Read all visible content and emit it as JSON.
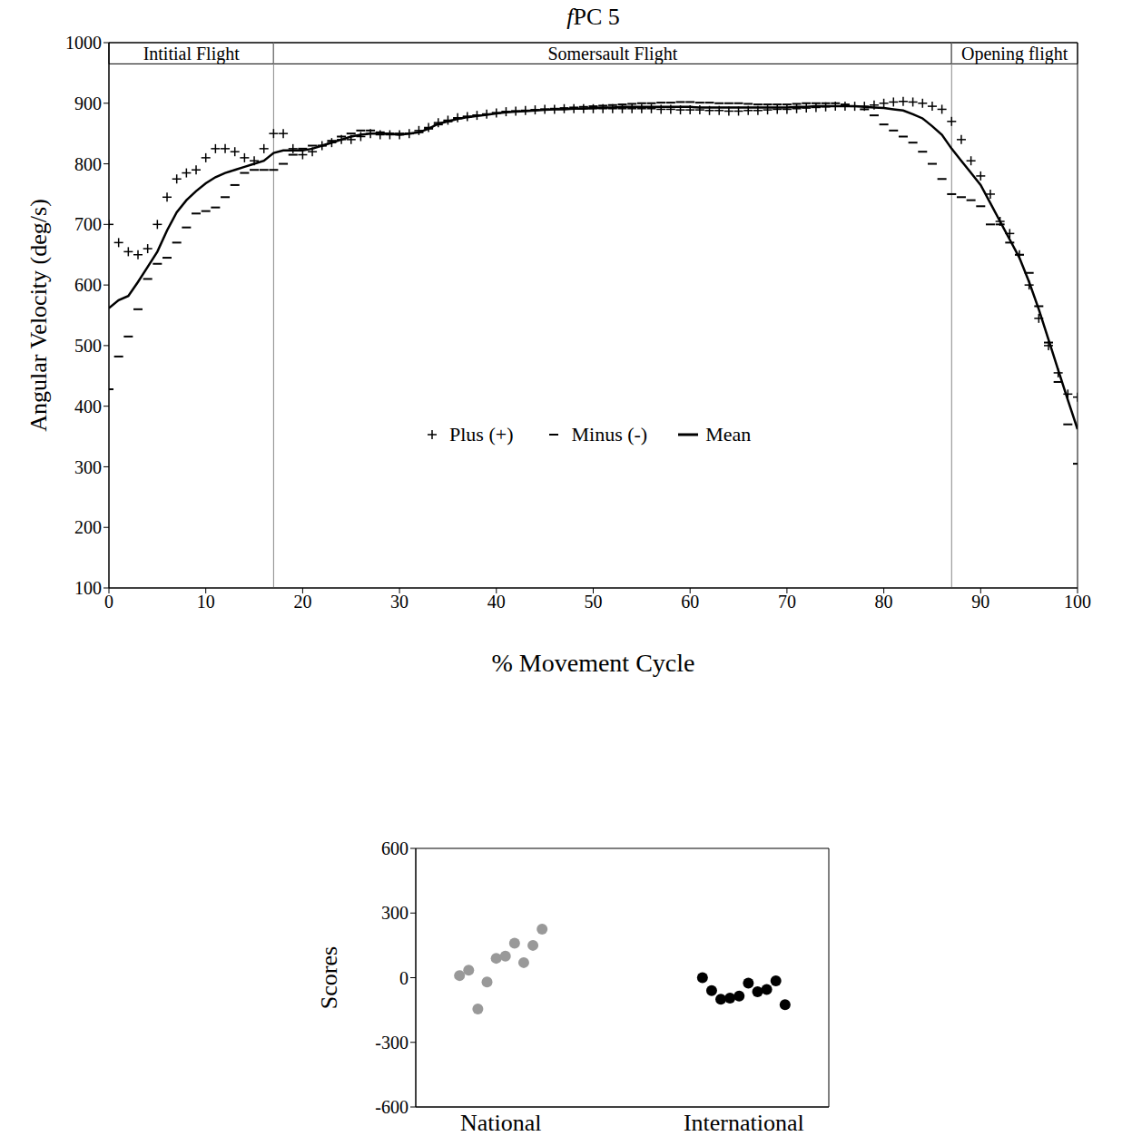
{
  "chart_data": [
    {
      "type": "line",
      "title": "fPC 5",
      "x_label": "% Movement Cycle",
      "y_label": "Angular Velocity (deg/s)",
      "xlim": [
        0,
        100
      ],
      "ylim": [
        100,
        1000
      ],
      "xticks": [
        0,
        10,
        20,
        30,
        40,
        50,
        60,
        70,
        80,
        90,
        100
      ],
      "yticks": [
        100,
        200,
        300,
        400,
        500,
        600,
        700,
        800,
        900,
        1000
      ],
      "grid": false,
      "legend": "center",
      "annotations": [
        {
          "text": "Intitial Flight",
          "x_start": 0,
          "x_end": 17,
          "y_start": 965,
          "y_end": 1000
        },
        {
          "text": "Somersault Flight",
          "x_start": 17,
          "x_end": 87,
          "y_start": 965,
          "y_end": 1000
        },
        {
          "text": "Opening flight",
          "x_start": 87,
          "x_end": 100,
          "y_start": 965,
          "y_end": 1000
        }
      ],
      "x": [
        0,
        1,
        2,
        3,
        4,
        5,
        6,
        7,
        8,
        9,
        10,
        11,
        12,
        13,
        14,
        15,
        16,
        17,
        18,
        19,
        20,
        21,
        22,
        23,
        24,
        25,
        26,
        27,
        28,
        29,
        30,
        31,
        32,
        33,
        34,
        35,
        36,
        37,
        38,
        39,
        40,
        41,
        42,
        43,
        44,
        45,
        46,
        47,
        48,
        49,
        50,
        51,
        52,
        53,
        54,
        55,
        56,
        57,
        58,
        59,
        60,
        61,
        62,
        63,
        64,
        65,
        66,
        67,
        68,
        69,
        70,
        71,
        72,
        73,
        74,
        75,
        76,
        77,
        78,
        79,
        80,
        81,
        82,
        83,
        84,
        85,
        86,
        87,
        88,
        89,
        90,
        91,
        92,
        93,
        94,
        95,
        96,
        97,
        98,
        99,
        100
      ],
      "series": [
        {
          "name": "Plus (+)",
          "color": "#000000",
          "marker": "plus",
          "line_style": "none",
          "values": [
            700,
            670,
            655,
            650,
            660,
            700,
            745,
            775,
            785,
            790,
            810,
            825,
            825,
            820,
            810,
            805,
            825,
            850,
            850,
            825,
            815,
            820,
            830,
            835,
            840,
            840,
            845,
            850,
            848,
            848,
            848,
            850,
            855,
            860,
            868,
            872,
            876,
            878,
            880,
            882,
            884,
            886,
            887,
            888,
            889,
            890,
            890,
            891,
            891,
            891,
            891,
            891,
            891,
            891,
            891,
            891,
            891,
            890,
            890,
            889,
            889,
            889,
            888,
            888,
            887,
            887,
            888,
            888,
            889,
            890,
            890,
            891,
            892,
            893,
            894,
            895,
            895,
            895,
            895,
            897,
            900,
            902,
            903,
            902,
            900,
            895,
            890,
            870,
            840,
            805,
            780,
            750,
            705,
            685,
            650,
            600,
            545,
            500,
            455,
            420,
            415
          ]
        },
        {
          "name": "Minus (-)",
          "color": "#000000",
          "marker": "minus",
          "line_style": "none",
          "values": [
            428,
            482,
            515,
            560,
            610,
            635,
            645,
            670,
            695,
            718,
            722,
            728,
            745,
            765,
            785,
            790,
            790,
            790,
            800,
            815,
            825,
            830,
            830,
            838,
            845,
            850,
            855,
            855,
            852,
            850,
            850,
            850,
            852,
            858,
            865,
            870,
            875,
            878,
            880,
            882,
            884,
            886,
            887,
            888,
            889,
            890,
            891,
            892,
            893,
            894,
            895,
            896,
            897,
            898,
            899,
            900,
            900,
            901,
            901,
            902,
            902,
            901,
            901,
            900,
            900,
            900,
            899,
            898,
            898,
            898,
            898,
            899,
            900,
            900,
            900,
            900,
            898,
            895,
            890,
            880,
            865,
            855,
            845,
            835,
            820,
            800,
            775,
            750,
            745,
            740,
            730,
            700,
            700,
            670,
            650,
            620,
            565,
            505,
            440,
            370,
            305
          ]
        },
        {
          "name": "Mean",
          "color": "#000000",
          "marker": "none",
          "line_style": "solid",
          "values": [
            562,
            575,
            582,
            605,
            630,
            655,
            690,
            720,
            740,
            755,
            768,
            778,
            785,
            790,
            795,
            800,
            805,
            818,
            822,
            822,
            822,
            825,
            830,
            835,
            840,
            845,
            848,
            850,
            850,
            850,
            848,
            850,
            852,
            858,
            866,
            870,
            874,
            877,
            879,
            881,
            883,
            885,
            886,
            887,
            888,
            889,
            890,
            890,
            891,
            891,
            892,
            893,
            893,
            894,
            894,
            894,
            894,
            894,
            894,
            894,
            894,
            893,
            893,
            893,
            893,
            893,
            893,
            893,
            893,
            893,
            893,
            894,
            894,
            895,
            895,
            895,
            895,
            895,
            894,
            893,
            892,
            890,
            888,
            882,
            875,
            862,
            848,
            825,
            805,
            785,
            765,
            735,
            705,
            675,
            645,
            605,
            560,
            510,
            460,
            410,
            362
          ]
        }
      ]
    },
    {
      "type": "scatter",
      "y_label": "Scores",
      "categories": [
        "National",
        "International"
      ],
      "values": [
        [
          10,
          35,
          -145,
          -20,
          90,
          100,
          160,
          70,
          150,
          225
        ],
        [
          0,
          -60,
          -100,
          -95,
          -85,
          -25,
          -65,
          -55,
          -15,
          -125
        ]
      ],
      "colors": [
        "#999999",
        "#000000"
      ],
      "marker": "circle",
      "ylim": [
        -600,
        600
      ],
      "yticks": [
        -600,
        -300,
        0,
        300,
        600
      ],
      "grid": false
    }
  ]
}
